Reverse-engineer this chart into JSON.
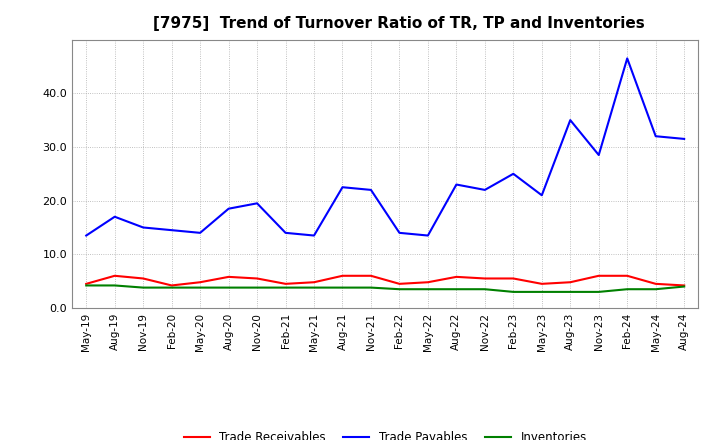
{
  "title": "[7975]  Trend of Turnover Ratio of TR, TP and Inventories",
  "x_labels": [
    "May-19",
    "Aug-19",
    "Nov-19",
    "Feb-20",
    "May-20",
    "Aug-20",
    "Nov-20",
    "Feb-21",
    "May-21",
    "Aug-21",
    "Nov-21",
    "Feb-22",
    "May-22",
    "Aug-22",
    "Nov-22",
    "Feb-23",
    "May-23",
    "Aug-23",
    "Nov-23",
    "Feb-24",
    "May-24",
    "Aug-24"
  ],
  "trade_receivables": [
    4.5,
    6.0,
    5.5,
    4.2,
    4.8,
    5.8,
    5.5,
    4.5,
    4.8,
    6.0,
    6.0,
    4.5,
    4.8,
    5.8,
    5.5,
    5.5,
    4.5,
    4.8,
    6.0,
    6.0,
    4.5,
    4.2
  ],
  "trade_payables": [
    13.5,
    17.0,
    15.0,
    14.5,
    14.0,
    18.5,
    19.5,
    14.0,
    13.5,
    22.5,
    22.0,
    14.0,
    13.5,
    23.0,
    22.0,
    25.0,
    21.0,
    35.0,
    28.5,
    46.5,
    32.0,
    31.5
  ],
  "inventories": [
    4.2,
    4.2,
    3.8,
    3.8,
    3.8,
    3.8,
    3.8,
    3.8,
    3.8,
    3.8,
    3.8,
    3.5,
    3.5,
    3.5,
    3.5,
    3.0,
    3.0,
    3.0,
    3.0,
    3.5,
    3.5,
    4.0
  ],
  "ylim": [
    0,
    50
  ],
  "yticks": [
    0.0,
    10.0,
    20.0,
    30.0,
    40.0
  ],
  "color_tr": "#ff0000",
  "color_tp": "#0000ff",
  "color_inv": "#008000",
  "legend_labels": [
    "Trade Receivables",
    "Trade Payables",
    "Inventories"
  ],
  "bg_color": "#ffffff",
  "plot_bg_color": "#ffffff",
  "grid_color": "#999999",
  "title_fontsize": 11,
  "axis_fontsize": 7.5,
  "legend_fontsize": 8.5,
  "line_width": 1.5
}
